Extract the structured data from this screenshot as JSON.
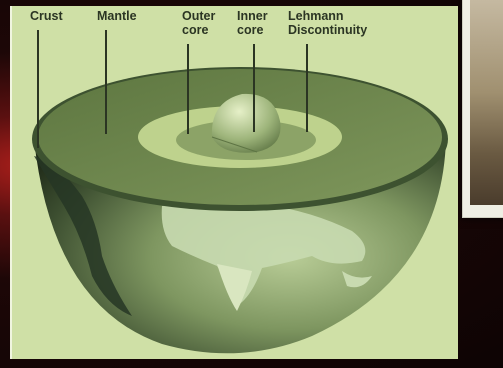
{
  "labels": {
    "crust": [
      "Crust"
    ],
    "mantle": [
      "Mantle"
    ],
    "outer_core": [
      "Outer",
      "core"
    ],
    "inner_core": [
      "Inner",
      "core"
    ],
    "lehmann": [
      "Lehmann",
      "Discontinuity"
    ]
  },
  "colors": {
    "panel_bg": "#cfe0a6",
    "mantle": "#6f864e",
    "outer_core": "#b7cd86",
    "inner_core": "#8fa66a",
    "hemisphere_dark": "#243320",
    "hemisphere_light": "#aec38a"
  }
}
